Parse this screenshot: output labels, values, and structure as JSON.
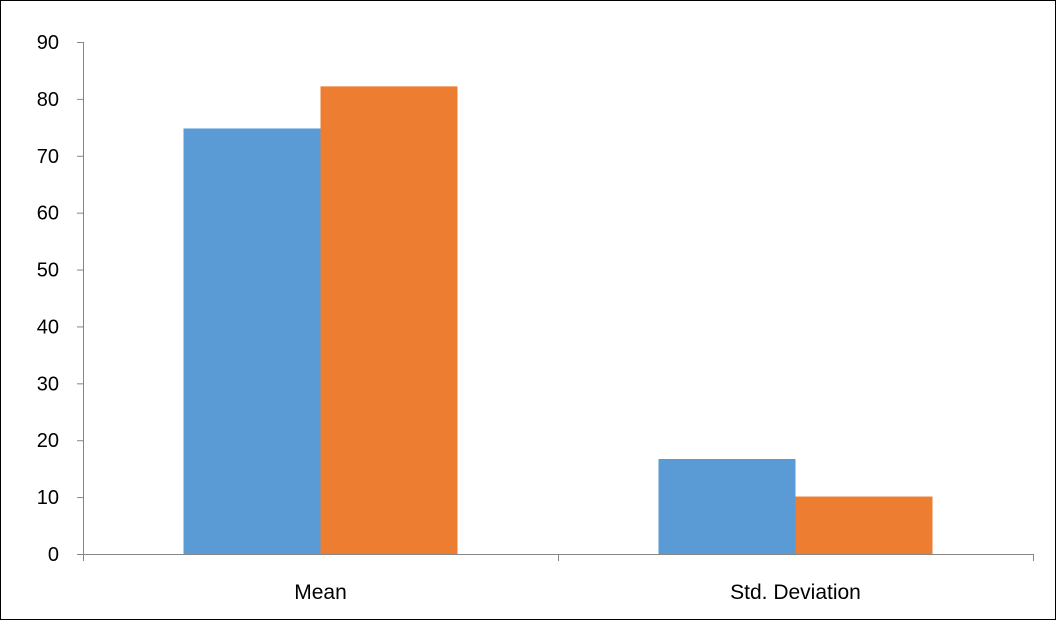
{
  "chart_data": {
    "type": "bar",
    "title": "",
    "xlabel": "",
    "ylabel": "",
    "categories": [
      "Mean",
      "Std. Deviation"
    ],
    "series": [
      {
        "color": "#5B9BD5",
        "values": [
          74.8,
          16.7
        ]
      },
      {
        "color": "#ED7D31",
        "values": [
          82.2,
          10.1
        ]
      }
    ],
    "ylim": [
      0,
      90
    ],
    "yticks": [
      "0",
      "10",
      "20",
      "30",
      "40",
      "50",
      "60",
      "70",
      "80",
      "90"
    ],
    "grid": false,
    "legend": "none"
  }
}
